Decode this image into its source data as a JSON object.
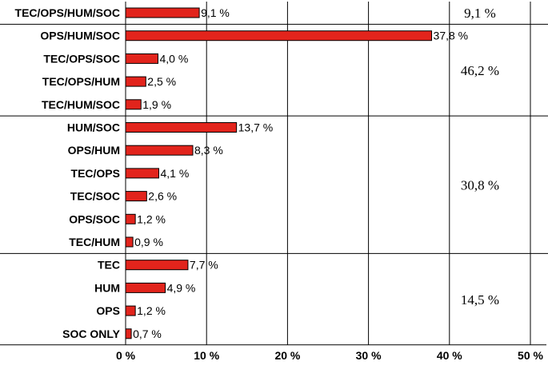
{
  "chart_data": {
    "type": "bar",
    "orientation": "horizontal",
    "categories": [
      "TEC/OPS/HUM/SOC",
      "OPS/HUM/SOC",
      "TEC/OPS/SOC",
      "TEC/OPS/HUM",
      "TEC/HUM/SOC",
      "HUM/SOC",
      "OPS/HUM",
      "TEC/OPS",
      "TEC/SOC",
      "OPS/SOC",
      "TEC/HUM",
      "TEC",
      "HUM",
      "OPS",
      "SOC ONLY"
    ],
    "values": [
      9.1,
      37.8,
      4.0,
      2.5,
      1.9,
      13.7,
      8.3,
      4.1,
      2.6,
      1.2,
      0.9,
      7.7,
      4.9,
      1.2,
      0.7
    ],
    "value_labels": [
      "9,1 %",
      "37,8 %",
      "4,0 %",
      "2,5 %",
      "1,9 %",
      "13,7 %",
      "8,3 %",
      "4,1 %",
      "2,6 %",
      "1,2 %",
      "0,9 %",
      "7,7 %",
      "4,9 %",
      "1,2 %",
      "0,7 %"
    ],
    "groups": [
      {
        "label": "9,1 %",
        "start": 0,
        "end": 0
      },
      {
        "label": "46,2 %",
        "start": 1,
        "end": 4
      },
      {
        "label": "30,8 %",
        "start": 5,
        "end": 10
      },
      {
        "label": "14,5 %",
        "start": 11,
        "end": 14
      }
    ],
    "xlim": [
      0,
      50
    ],
    "xticks": [
      0,
      10,
      20,
      30,
      40,
      50
    ],
    "xtick_labels": [
      "0 %",
      "10 %",
      "20 %",
      "30 %",
      "40 %",
      "50 %"
    ],
    "grid": true,
    "bar_color": "#e2241c"
  }
}
